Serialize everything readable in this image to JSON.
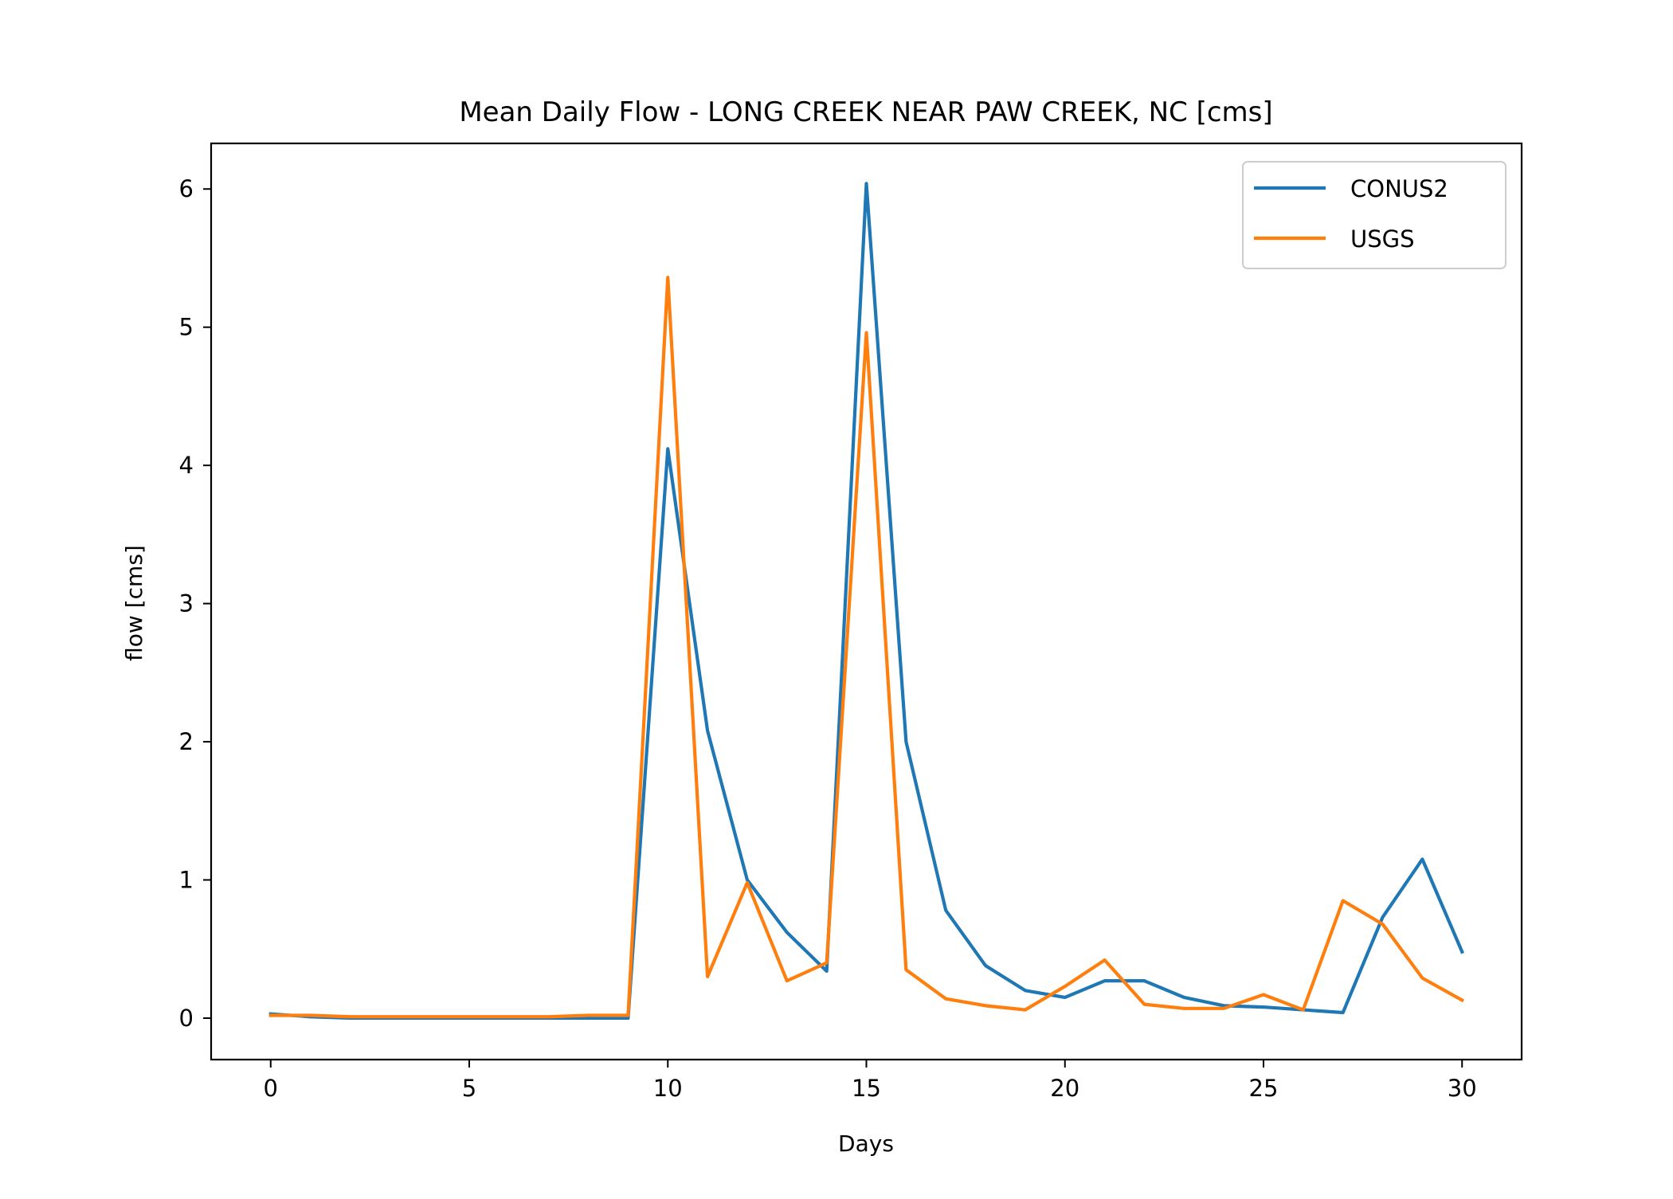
{
  "chart_data": {
    "type": "line",
    "title": "Mean Daily Flow - LONG CREEK NEAR PAW CREEK, NC [cms]",
    "xlabel": "Days",
    "ylabel": "flow [cms]",
    "xlim": [
      -1.5,
      31.5
    ],
    "ylim": [
      -0.3,
      6.33
    ],
    "xticks": [
      0,
      5,
      10,
      15,
      20,
      25,
      30
    ],
    "yticks": [
      0,
      1,
      2,
      3,
      4,
      5,
      6
    ],
    "grid": false,
    "legend_position": "top-right",
    "x": [
      0,
      1,
      2,
      3,
      4,
      5,
      6,
      7,
      8,
      9,
      10,
      11,
      12,
      13,
      14,
      15,
      16,
      17,
      18,
      19,
      20,
      21,
      22,
      23,
      24,
      25,
      26,
      27,
      28,
      29,
      30
    ],
    "series": [
      {
        "name": "CONUS2",
        "color": "#1f77b4",
        "values": [
          0.03,
          0.01,
          0.0,
          0.0,
          0.0,
          0.0,
          0.0,
          0.0,
          0.0,
          0.0,
          4.12,
          2.08,
          1.0,
          0.62,
          0.34,
          6.04,
          2.0,
          0.78,
          0.38,
          0.2,
          0.15,
          0.27,
          0.27,
          0.15,
          0.09,
          0.08,
          0.06,
          0.04,
          0.73,
          1.15,
          0.48
        ]
      },
      {
        "name": "USGS",
        "color": "#ff7f0e",
        "values": [
          0.02,
          0.02,
          0.01,
          0.01,
          0.01,
          0.01,
          0.01,
          0.01,
          0.02,
          0.02,
          5.36,
          0.3,
          0.98,
          0.27,
          0.4,
          4.96,
          0.35,
          0.14,
          0.09,
          0.06,
          0.23,
          0.42,
          0.1,
          0.07,
          0.07,
          0.17,
          0.06,
          0.85,
          0.68,
          0.29,
          0.13
        ]
      }
    ]
  }
}
